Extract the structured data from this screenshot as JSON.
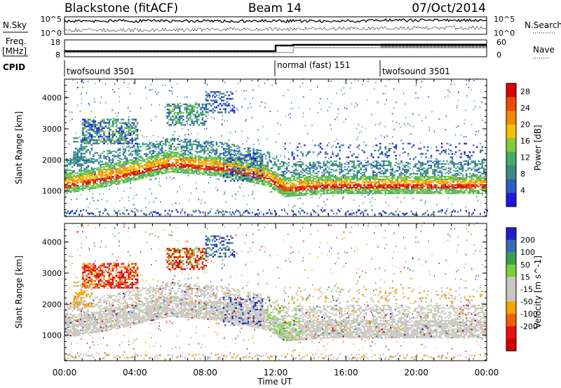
{
  "header": {
    "station": "Blackstone (fitACF)",
    "beam": "Beam 14",
    "date": "07/Oct/2014"
  },
  "noise_panel": {
    "left_label": "N.Sky",
    "right_label": "N.Search",
    "tick_top": "10^5",
    "tick_bottom": "10^0"
  },
  "freq_panel": {
    "left_label_line1": "Freq.",
    "left_label_line2": "[MHz]",
    "right_label": "Nave",
    "left_ticks": [
      "18",
      "8"
    ],
    "right_ticks": [
      "60",
      "0"
    ]
  },
  "cpid_panel": {
    "label": "CPID",
    "segments": [
      {
        "name": "twofsound 3501",
        "start_hour": 0
      },
      {
        "name": "normal (fast) 151",
        "start_hour": 12
      },
      {
        "name": "twofsound 3501",
        "start_hour": 18
      }
    ]
  },
  "colors": {
    "power_scale": [
      "#1a1adc",
      "#2e5fbf",
      "#3f8a7a",
      "#3fae6a",
      "#86c93a",
      "#f2c200",
      "#f28a00",
      "#ee4a00",
      "#dd0000"
    ],
    "velocity_scale": [
      "#2020c8",
      "#3c6ab8",
      "#3aa050",
      "#7ccf3a",
      "#c8c8c0",
      "#c8c8c0",
      "#f5a400",
      "#f06000",
      "#e81010",
      "#d40000"
    ]
  },
  "chart_data": [
    {
      "type": "heatmap",
      "name": "Power",
      "ylabel": "Slant Range [km]",
      "x_range_hours": [
        0,
        24
      ],
      "ylim_km": [
        180,
        4600
      ],
      "yticks": [
        1000,
        2000,
        3000,
        4000
      ],
      "colorbar": {
        "label": "Power [dB]",
        "ticks": [
          4,
          8,
          12,
          16,
          20,
          24,
          28
        ],
        "range": [
          0,
          30
        ]
      },
      "main_scatter_band_km": [
        {
          "hour": 0,
          "lower": 1050,
          "upper": 1450
        },
        {
          "hour": 3,
          "lower": 1350,
          "upper": 1800
        },
        {
          "hour": 6,
          "lower": 1750,
          "upper": 2150
        },
        {
          "hour": 9,
          "lower": 1600,
          "upper": 2000
        },
        {
          "hour": 11.5,
          "lower": 1300,
          "upper": 1700
        },
        {
          "hour": 12.5,
          "lower": 950,
          "upper": 1350
        },
        {
          "hour": 15,
          "lower": 1050,
          "upper": 1400
        },
        {
          "hour": 24,
          "lower": 1050,
          "upper": 1400
        }
      ]
    },
    {
      "type": "heatmap",
      "name": "Velocity",
      "ylabel": "Slant Range [km]",
      "xlabel": "Time UT",
      "x_range_hours": [
        0,
        24
      ],
      "xticks": [
        "00:00",
        "04:00",
        "08:00",
        "12:00",
        "16:00",
        "20:00",
        "00:00"
      ],
      "ylim_km": [
        180,
        4600
      ],
      "yticks": [
        1000,
        2000,
        3000,
        4000
      ],
      "colorbar": {
        "label": "Velocity [m s^-1]",
        "ticks": [
          200,
          100,
          50,
          15,
          -15,
          -50,
          -100,
          -200
        ]
      }
    }
  ]
}
